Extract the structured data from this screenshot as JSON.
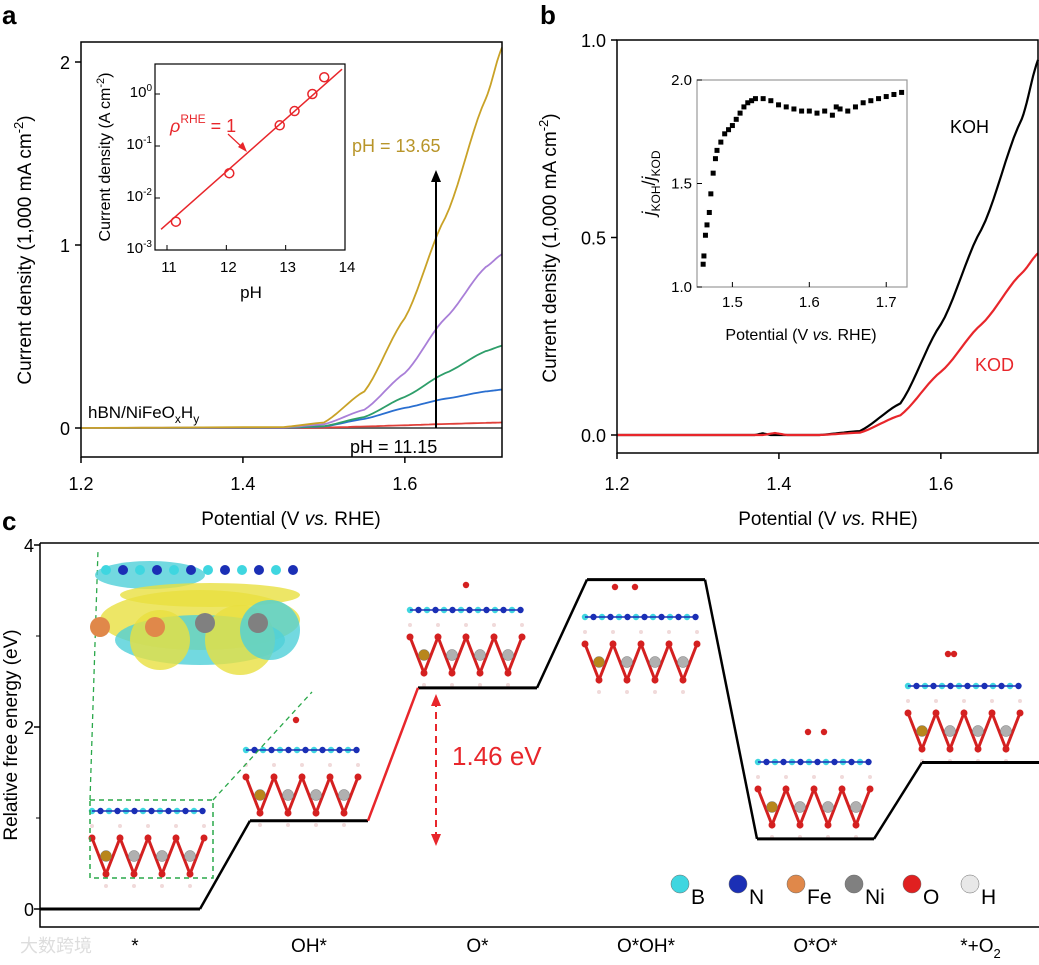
{
  "panels": {
    "a": "a",
    "b": "b",
    "c": "c"
  },
  "chart_data": [
    {
      "type": "line",
      "panel": "a",
      "xlabel_pre": "Potential (V ",
      "xlabel_it": "vs.",
      "xlabel_post": " RHE)",
      "ylabel_pre": "Current density (1,000 mA cm",
      "ylabel_sup": "-2",
      "ylabel_post": ")",
      "xlim": [
        1.2,
        1.72
      ],
      "ylim": [
        -0.15,
        2.1
      ],
      "xticks": [
        1.2,
        1.4,
        1.6
      ],
      "xtick_labels": [
        "1.2",
        "1.4",
        "1.6"
      ],
      "yticks": [
        0,
        1,
        2
      ],
      "ytick_labels": [
        "0",
        "1",
        "2"
      ],
      "sample_label_main": "hBN/NiFeO",
      "sample_sub_x": "x",
      "sample_H": "H",
      "sample_sub_y": "y",
      "annotation_high": "pH = 13.65",
      "annotation_low": "pH = 11.15",
      "x": [
        1.2,
        1.45,
        1.5,
        1.55,
        1.6,
        1.65,
        1.7,
        1.72
      ],
      "series": [
        {
          "name": "pH 11.15 (baseline)",
          "color": "#555555",
          "values": [
            0,
            0,
            0,
            0,
            0,
            0,
            0,
            0
          ]
        },
        {
          "name": "red",
          "color": "#e0403a",
          "values": [
            0,
            0,
            0.002,
            0.008,
            0.015,
            0.022,
            0.028,
            0.03
          ]
        },
        {
          "name": "blue",
          "color": "#2a6fd0",
          "values": [
            0,
            0.001,
            0.008,
            0.05,
            0.11,
            0.16,
            0.2,
            0.21
          ]
        },
        {
          "name": "green",
          "color": "#2e9e6a",
          "values": [
            0,
            0.002,
            0.01,
            0.06,
            0.17,
            0.3,
            0.42,
            0.45
          ]
        },
        {
          "name": "purple",
          "color": "#a97fd8",
          "values": [
            0,
            0.003,
            0.02,
            0.1,
            0.3,
            0.6,
            0.88,
            0.95
          ]
        },
        {
          "name": "pH 13.65",
          "color": "#c9a227",
          "values": [
            0,
            0.005,
            0.03,
            0.2,
            0.6,
            1.15,
            1.8,
            2.08
          ]
        }
      ],
      "inset": {
        "type": "scatter",
        "xlabel": "pH",
        "ylabel_pre": "Current density (A cm",
        "ylabel_sup": "-2",
        "ylabel_post": ")",
        "xlim": [
          10.8,
          14
        ],
        "ylog_lim": [
          -3,
          0.58
        ],
        "xticks": [
          11,
          12,
          13,
          14
        ],
        "xtick_labels": [
          "11",
          "12",
          "13",
          "14"
        ],
        "ytick_exps": [
          0,
          -1,
          -2,
          -3
        ],
        "ytick_base": "10",
        "ytick_exp_labels": [
          "0",
          "-1",
          "-2",
          "-3"
        ],
        "points_x": [
          11.15,
          12.05,
          12.9,
          13.15,
          13.45,
          13.65
        ],
        "points_y": [
          0.0035,
          0.03,
          0.25,
          0.47,
          1.0,
          2.1
        ],
        "fit_x": [
          10.9,
          13.95
        ],
        "fit_y": [
          0.0025,
          3.0
        ],
        "annotation_rho": "ρ",
        "annotation_sup": "RHE",
        "annotation_eq": " = 1",
        "color": "#e8262b"
      }
    },
    {
      "type": "line",
      "panel": "b",
      "xlabel_pre": "Potential (V ",
      "xlabel_it": "vs.",
      "xlabel_post": " RHE)",
      "ylabel_pre": "Current density (1,000 mA cm",
      "ylabel_sup": "-2",
      "ylabel_post": ")",
      "xlim": [
        1.2,
        1.72
      ],
      "ylim": [
        -0.1,
        1.0
      ],
      "xticks": [
        1.2,
        1.4,
        1.6
      ],
      "xtick_labels": [
        "1.2",
        "1.4",
        "1.6"
      ],
      "yticks": [
        0,
        0.5,
        1.0
      ],
      "ytick_labels": [
        "0.0",
        "0.5",
        "1.0"
      ],
      "series": [
        {
          "name": "KOH",
          "color": "#000000",
          "x": [
            1.2,
            1.37,
            1.38,
            1.39,
            1.45,
            1.5,
            1.55,
            1.6,
            1.65,
            1.7,
            1.72
          ],
          "values": [
            0,
            0,
            0.004,
            0,
            0,
            0.01,
            0.08,
            0.28,
            0.52,
            0.8,
            0.95
          ]
        },
        {
          "name": "KOD",
          "color": "#e8262b",
          "x": [
            1.2,
            1.38,
            1.395,
            1.41,
            1.45,
            1.5,
            1.55,
            1.6,
            1.65,
            1.7,
            1.72
          ],
          "values": [
            0,
            0,
            0.005,
            0,
            0,
            0.006,
            0.05,
            0.16,
            0.28,
            0.41,
            0.46
          ]
        }
      ],
      "inset": {
        "type": "scatter",
        "xlabel_pre": "Potential (V ",
        "xlabel_it": "vs.",
        "xlabel_post": " RHE)",
        "ylabel_j1": "j",
        "ylabel_s1": "KOH",
        "ylabel_slash": "/",
        "ylabel_j2": "j",
        "ylabel_s2": "KOD",
        "xlim": [
          1.454,
          1.727
        ],
        "ylim": [
          1.0,
          2.0
        ],
        "xticks": [
          1.5,
          1.6,
          1.7
        ],
        "xtick_labels": [
          "1.5",
          "1.6",
          "1.7"
        ],
        "yticks": [
          1.0,
          1.5,
          2.0
        ],
        "ytick_labels": [
          "1.0",
          "1.5",
          "2.0"
        ],
        "x": [
          1.462,
          1.463,
          1.465,
          1.467,
          1.47,
          1.472,
          1.475,
          1.478,
          1.48,
          1.485,
          1.49,
          1.495,
          1.5,
          1.505,
          1.51,
          1.515,
          1.52,
          1.525,
          1.53,
          1.54,
          1.55,
          1.56,
          1.57,
          1.58,
          1.59,
          1.6,
          1.61,
          1.62,
          1.63,
          1.635,
          1.64,
          1.65,
          1.66,
          1.67,
          1.68,
          1.69,
          1.7,
          1.71,
          1.72
        ],
        "y": [
          1.11,
          1.15,
          1.25,
          1.3,
          1.36,
          1.45,
          1.55,
          1.62,
          1.66,
          1.7,
          1.74,
          1.76,
          1.78,
          1.81,
          1.84,
          1.87,
          1.89,
          1.9,
          1.91,
          1.91,
          1.9,
          1.88,
          1.87,
          1.86,
          1.85,
          1.85,
          1.84,
          1.85,
          1.83,
          1.87,
          1.86,
          1.85,
          1.87,
          1.89,
          1.9,
          1.91,
          1.92,
          1.93,
          1.94
        ]
      }
    },
    {
      "type": "line",
      "panel": "c",
      "ylabel": "Relative free energy (eV)",
      "ylim": [
        -0.3,
        4.0
      ],
      "yticks": [
        0,
        2,
        4
      ],
      "ytick_labels": [
        "0",
        "2",
        "4"
      ],
      "categories": [
        "*",
        "OH*",
        "O*",
        "O*OH*",
        "O*O*",
        "*+O"
      ],
      "category_sub_last": "2",
      "values": [
        0,
        0.97,
        2.43,
        3.62,
        0.77,
        1.61
      ],
      "highlight_step": [
        1,
        2
      ],
      "highlight_color": "#e8262b",
      "barrier_label": "1.46 eV",
      "legend": [
        {
          "label": "B",
          "color": "#3fd6e0"
        },
        {
          "label": "N",
          "color": "#1b2fb5"
        },
        {
          "label": "Fe",
          "color": "#e0884a"
        },
        {
          "label": "Ni",
          "color": "#808080"
        },
        {
          "label": "O",
          "color": "#e02020"
        },
        {
          "label": "H",
          "color": "#e8e8e8"
        }
      ]
    }
  ],
  "watermark": "大数跨境"
}
